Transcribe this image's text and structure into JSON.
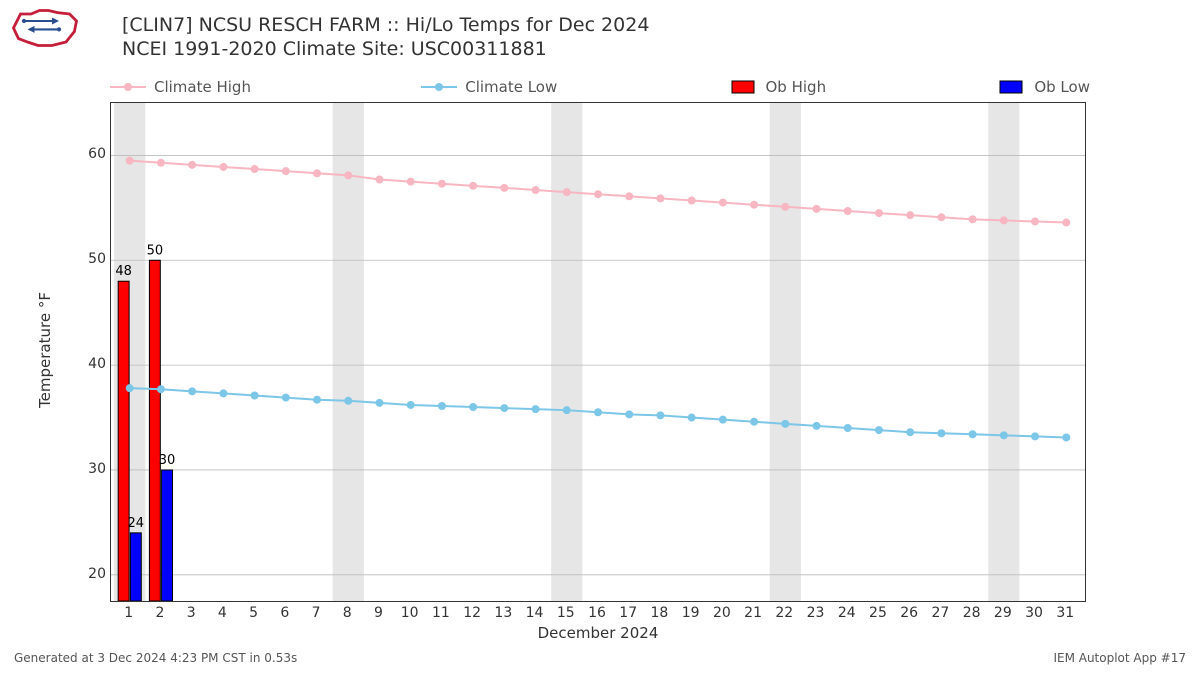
{
  "title_line1": "[CLIN7] NCSU RESCH FARM :: Hi/Lo Temps for Dec 2024",
  "title_line2": "NCEI 1991-2020 Climate Site: USC00311881",
  "footer_left": "Generated at 3 Dec 2024 4:23 PM CST in 0.53s",
  "footer_right": "IEM Autoplot App #17",
  "ylabel": "Temperature °F",
  "xlabel": "December 2024",
  "legend": {
    "climate_high": "Climate High",
    "climate_low": "Climate Low",
    "ob_high": "Ob High",
    "ob_low": "Ob Low"
  },
  "colors": {
    "climate_high": "#f7b6c2",
    "climate_low": "#7cc7e8",
    "ob_high": "#ff0000",
    "ob_low": "#0000ff",
    "bar_edge": "#000000",
    "weekend_band": "#e6e6e6",
    "grid": "#bbbbbb",
    "axis": "#333333",
    "background": "#ffffff"
  },
  "chart": {
    "type": "mixed-line-bar",
    "x_days": [
      1,
      2,
      3,
      4,
      5,
      6,
      7,
      8,
      9,
      10,
      11,
      12,
      13,
      14,
      15,
      16,
      17,
      18,
      19,
      20,
      21,
      22,
      23,
      24,
      25,
      26,
      27,
      28,
      29,
      30,
      31
    ],
    "xlim": [
      0.4,
      31.6
    ],
    "ylim": [
      17.5,
      65
    ],
    "yticks": [
      20,
      30,
      40,
      50,
      60
    ],
    "climate_high": [
      59.5,
      59.3,
      59.1,
      58.9,
      58.7,
      58.5,
      58.3,
      58.1,
      57.7,
      57.5,
      57.3,
      57.1,
      56.9,
      56.7,
      56.5,
      56.3,
      56.1,
      55.9,
      55.7,
      55.5,
      55.3,
      55.1,
      54.9,
      54.7,
      54.5,
      54.3,
      54.1,
      53.9,
      53.8,
      53.7,
      53.6
    ],
    "climate_low": [
      37.8,
      37.7,
      37.5,
      37.3,
      37.1,
      36.9,
      36.7,
      36.6,
      36.4,
      36.2,
      36.1,
      36.0,
      35.9,
      35.8,
      35.7,
      35.5,
      35.3,
      35.2,
      35.0,
      34.8,
      34.6,
      34.4,
      34.2,
      34.0,
      33.8,
      33.6,
      33.5,
      33.4,
      33.3,
      33.2,
      33.1
    ],
    "ob_high": [
      {
        "day": 1,
        "value": 48,
        "label": "48"
      },
      {
        "day": 2,
        "value": 50,
        "label": "50"
      }
    ],
    "ob_low": [
      {
        "day": 1,
        "value": 24,
        "label": "24"
      },
      {
        "day": 2,
        "value": 30,
        "label": "30"
      }
    ],
    "weekend_bands": [
      [
        0.5,
        1.5
      ],
      [
        7.5,
        8.5
      ],
      [
        14.5,
        15.5
      ],
      [
        21.5,
        22.5
      ],
      [
        28.5,
        29.5
      ]
    ],
    "bar_width": 0.35,
    "marker_radius": 4,
    "line_width": 2,
    "font_size_tick": 14,
    "font_size_label": 15,
    "font_size_barlabel": 13
  }
}
